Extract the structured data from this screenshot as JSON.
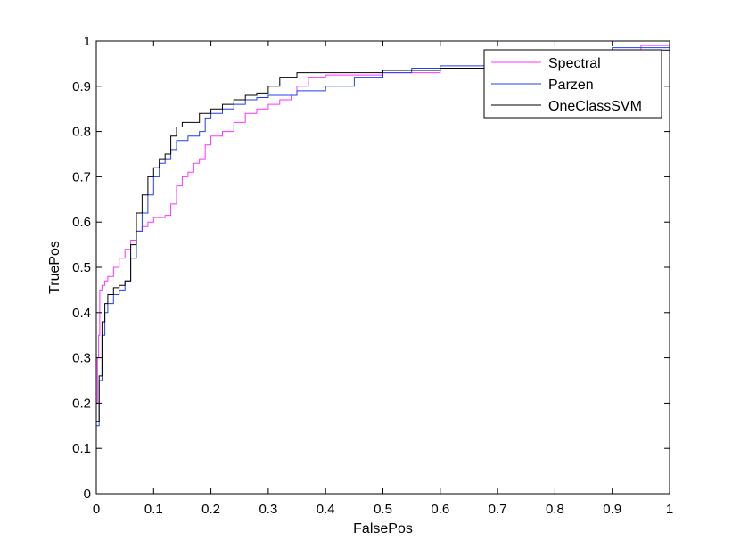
{
  "chart_data": {
    "type": "line",
    "title": "",
    "xlabel": "FalsePos",
    "ylabel": "TruePos",
    "xlim": [
      0,
      1
    ],
    "ylim": [
      0,
      1
    ],
    "xticks": [
      "0",
      "0.1",
      "0.2",
      "0.3",
      "0.4",
      "0.5",
      "0.6",
      "0.7",
      "0.8",
      "0.9",
      "1"
    ],
    "yticks": [
      "0",
      "0.1",
      "0.2",
      "0.3",
      "0.4",
      "0.5",
      "0.6",
      "0.7",
      "0.8",
      "0.9",
      "1"
    ],
    "grid": false,
    "legend": "top-right",
    "series": [
      {
        "name": "Spectral",
        "color": "#ff33ff",
        "points": [
          [
            0,
            0.2
          ],
          [
            0.002,
            0.3
          ],
          [
            0.004,
            0.35
          ],
          [
            0.006,
            0.45
          ],
          [
            0.01,
            0.46
          ],
          [
            0.015,
            0.47
          ],
          [
            0.02,
            0.48
          ],
          [
            0.03,
            0.5
          ],
          [
            0.04,
            0.52
          ],
          [
            0.05,
            0.54
          ],
          [
            0.06,
            0.56
          ],
          [
            0.07,
            0.58
          ],
          [
            0.08,
            0.59
          ],
          [
            0.09,
            0.6
          ],
          [
            0.1,
            0.61
          ],
          [
            0.12,
            0.615
          ],
          [
            0.13,
            0.64
          ],
          [
            0.14,
            0.68
          ],
          [
            0.15,
            0.7
          ],
          [
            0.16,
            0.71
          ],
          [
            0.17,
            0.73
          ],
          [
            0.18,
            0.74
          ],
          [
            0.19,
            0.77
          ],
          [
            0.2,
            0.79
          ],
          [
            0.22,
            0.8
          ],
          [
            0.24,
            0.82
          ],
          [
            0.26,
            0.84
          ],
          [
            0.28,
            0.85
          ],
          [
            0.3,
            0.86
          ],
          [
            0.32,
            0.87
          ],
          [
            0.34,
            0.88
          ],
          [
            0.35,
            0.9
          ],
          [
            0.37,
            0.92
          ],
          [
            0.4,
            0.925
          ],
          [
            0.5,
            0.93
          ],
          [
            0.6,
            0.94
          ],
          [
            0.7,
            0.95
          ],
          [
            0.8,
            0.96
          ],
          [
            0.9,
            0.98
          ],
          [
            0.95,
            0.99
          ],
          [
            1,
            1
          ]
        ]
      },
      {
        "name": "Parzen",
        "color": "#1f3ff5",
        "points": [
          [
            0,
            0.15
          ],
          [
            0.005,
            0.25
          ],
          [
            0.01,
            0.35
          ],
          [
            0.015,
            0.4
          ],
          [
            0.02,
            0.42
          ],
          [
            0.03,
            0.44
          ],
          [
            0.04,
            0.45
          ],
          [
            0.05,
            0.47
          ],
          [
            0.06,
            0.52
          ],
          [
            0.07,
            0.58
          ],
          [
            0.08,
            0.62
          ],
          [
            0.09,
            0.66
          ],
          [
            0.1,
            0.7
          ],
          [
            0.11,
            0.73
          ],
          [
            0.12,
            0.74
          ],
          [
            0.13,
            0.76
          ],
          [
            0.14,
            0.78
          ],
          [
            0.15,
            0.78
          ],
          [
            0.16,
            0.79
          ],
          [
            0.18,
            0.8
          ],
          [
            0.19,
            0.83
          ],
          [
            0.2,
            0.84
          ],
          [
            0.22,
            0.85
          ],
          [
            0.24,
            0.86
          ],
          [
            0.26,
            0.87
          ],
          [
            0.28,
            0.875
          ],
          [
            0.3,
            0.88
          ],
          [
            0.35,
            0.89
          ],
          [
            0.4,
            0.9
          ],
          [
            0.45,
            0.92
          ],
          [
            0.5,
            0.93
          ],
          [
            0.55,
            0.94
          ],
          [
            0.6,
            0.945
          ],
          [
            0.7,
            0.955
          ],
          [
            0.8,
            0.97
          ],
          [
            0.9,
            0.985
          ],
          [
            1,
            1
          ]
        ]
      },
      {
        "name": "OneClassSVM",
        "color": "#000000",
        "points": [
          [
            0,
            0.16
          ],
          [
            0.005,
            0.26
          ],
          [
            0.01,
            0.38
          ],
          [
            0.015,
            0.42
          ],
          [
            0.02,
            0.44
          ],
          [
            0.03,
            0.455
          ],
          [
            0.04,
            0.46
          ],
          [
            0.05,
            0.47
          ],
          [
            0.06,
            0.55
          ],
          [
            0.07,
            0.62
          ],
          [
            0.08,
            0.66
          ],
          [
            0.09,
            0.7
          ],
          [
            0.1,
            0.72
          ],
          [
            0.11,
            0.74
          ],
          [
            0.12,
            0.75
          ],
          [
            0.13,
            0.79
          ],
          [
            0.14,
            0.81
          ],
          [
            0.15,
            0.82
          ],
          [
            0.16,
            0.82
          ],
          [
            0.18,
            0.84
          ],
          [
            0.2,
            0.85
          ],
          [
            0.22,
            0.86
          ],
          [
            0.24,
            0.87
          ],
          [
            0.26,
            0.88
          ],
          [
            0.28,
            0.885
          ],
          [
            0.3,
            0.9
          ],
          [
            0.32,
            0.92
          ],
          [
            0.35,
            0.93
          ],
          [
            0.4,
            0.93
          ],
          [
            0.5,
            0.935
          ],
          [
            0.6,
            0.94
          ],
          [
            0.7,
            0.945
          ],
          [
            0.8,
            0.96
          ],
          [
            0.9,
            0.98
          ],
          [
            1,
            1
          ]
        ]
      }
    ]
  }
}
